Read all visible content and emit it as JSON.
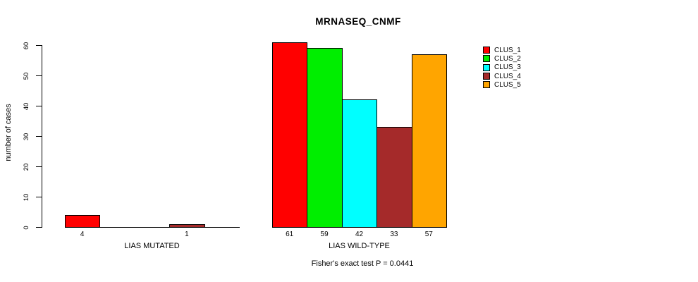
{
  "header": {
    "title": "MRNASEQ_CNMF"
  },
  "footnote": {
    "text": "Fisher's exact test P = 0.0441"
  },
  "chart_data": {
    "type": "bar",
    "title": "MRNASEQ_CNMF",
    "xlabel": "",
    "ylabel": "number of cases",
    "ylim": [
      0,
      61
    ],
    "yticks": [
      0,
      10,
      20,
      30,
      40,
      50,
      60
    ],
    "grid": false,
    "legend_position": "right",
    "categories": [
      "LIAS MUTATED",
      "LIAS WILD-TYPE"
    ],
    "series": [
      {
        "name": "CLUS_1",
        "color": "#FF0000",
        "values": [
          4,
          61
        ]
      },
      {
        "name": "CLUS_2",
        "color": "#00EE00",
        "values": [
          0,
          59
        ]
      },
      {
        "name": "CLUS_3",
        "color": "#00FFFF",
        "values": [
          0,
          42
        ]
      },
      {
        "name": "CLUS_4",
        "color": "#A52A2A",
        "values": [
          1,
          33
        ]
      },
      {
        "name": "CLUS_5",
        "color": "#FFA500",
        "values": [
          0,
          57
        ]
      }
    ],
    "bar_value_labels_shown_when_nonzero": true,
    "annotation": "Fisher's exact test P = 0.0441"
  }
}
